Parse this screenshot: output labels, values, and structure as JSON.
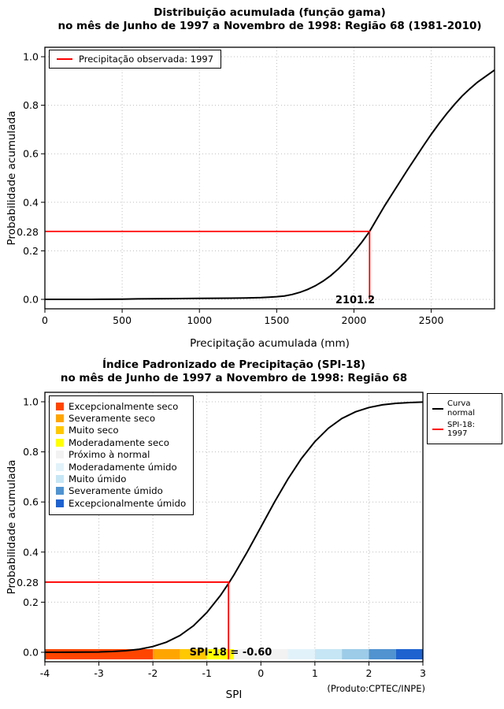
{
  "page": {
    "background": "#ffffff"
  },
  "chart_data": [
    {
      "type": "line",
      "id": "gamma-cdf",
      "title_line1": "Distribuição acumulada (função gama)",
      "title_line2": "no mês de Junho de 1997 a Novembro de 1998: Região 68 (1981-2010)",
      "xlabel": "Precipitação acumulada (mm)",
      "ylabel": "Probabilidade acumulada",
      "xlim": [
        0,
        2910
      ],
      "ylim": [
        0,
        1
      ],
      "xticks": [
        0,
        500,
        1000,
        1500,
        2000,
        2500
      ],
      "xtick_labels": [
        "0",
        "500",
        "1000",
        "1500",
        "2000",
        "2500"
      ],
      "yticks": [
        0,
        0.2,
        0.4,
        0.6,
        0.8,
        1.0
      ],
      "ytick_labels": [
        "0.0",
        "0.2",
        "0.4",
        "0.6",
        "0.8",
        "1.0"
      ],
      "grid": "dotted",
      "curve_color": "#000000",
      "legend": {
        "position": "top-left",
        "items": [
          {
            "label": "Precipitação observada: 1997",
            "color": "#ff0000",
            "type": "line"
          }
        ]
      },
      "marker": {
        "x": 2101.2,
        "y": 0.28,
        "x_label": "2101.2",
        "y_label": "0.28",
        "color": "#ff0000"
      },
      "curve": {
        "x": [
          0,
          300,
          500,
          600,
          800,
          1000,
          1200,
          1300,
          1400,
          1450,
          1500,
          1550,
          1600,
          1650,
          1700,
          1750,
          1800,
          1850,
          1900,
          1950,
          2000,
          2050,
          2101.2,
          2150,
          2200,
          2250,
          2300,
          2350,
          2400,
          2450,
          2500,
          2550,
          2600,
          2650,
          2700,
          2750,
          2800,
          2850,
          2910
        ],
        "y": [
          0,
          0,
          0.001,
          0.002,
          0.003,
          0.004,
          0.005,
          0.006,
          0.007,
          0.009,
          0.011,
          0.014,
          0.02,
          0.029,
          0.041,
          0.056,
          0.075,
          0.098,
          0.126,
          0.158,
          0.195,
          0.235,
          0.28,
          0.333,
          0.387,
          0.437,
          0.487,
          0.537,
          0.585,
          0.633,
          0.68,
          0.724,
          0.765,
          0.803,
          0.838,
          0.868,
          0.895,
          0.918,
          0.945
        ]
      }
    },
    {
      "type": "line",
      "id": "spi-cdf",
      "title_line1": "Índice Padronizado de Precipitação (SPI-18)",
      "title_line2": "no mês de Junho de 1997 a Novembro de 1998: Região 68",
      "xlabel": "SPI",
      "ylabel": "Probabilidade acumulada",
      "xlim": [
        -4,
        3
      ],
      "ylim": [
        0,
        1
      ],
      "xticks": [
        -4,
        -3,
        -2,
        -1,
        0,
        1,
        2,
        3
      ],
      "xtick_labels": [
        "-4",
        "-3",
        "-2",
        "-1",
        "0",
        "1",
        "2",
        "3"
      ],
      "yticks": [
        0,
        0.2,
        0.4,
        0.6,
        0.8,
        1.0
      ],
      "ytick_labels": [
        "0.0",
        "0.2",
        "0.4",
        "0.6",
        "0.8",
        "1.0"
      ],
      "grid": "dotted",
      "curve_color": "#000000",
      "category_legend": {
        "position": "top-left",
        "items": [
          {
            "label": "Excepcionalmente seco",
            "color": "#FF4500"
          },
          {
            "label": "Severamente seco",
            "color": "#FFA500"
          },
          {
            "label": "Muito seco",
            "color": "#FFC800"
          },
          {
            "label": "Moderadamente seco",
            "color": "#FFFF00"
          },
          {
            "label": "Próximo à normal",
            "color": "#F2F2F2"
          },
          {
            "label": "Moderadamente úmido",
            "color": "#E2F2FA"
          },
          {
            "label": "Muito úmido",
            "color": "#C6E6F5"
          },
          {
            "label": "Severamente úmido",
            "color": "#5093D0"
          },
          {
            "label": "Excepcionalmente úmido",
            "color": "#1E62D0"
          }
        ]
      },
      "line_legend": {
        "position": "top-right",
        "items": [
          {
            "label": "Curva normal",
            "label_line1": "Curva",
            "label_line2": "normal",
            "color": "#000000"
          },
          {
            "label": "SPI-18: 1997",
            "color": "#ff0000"
          }
        ]
      },
      "marker": {
        "x": -0.6,
        "y": 0.28,
        "y_label": "0.28",
        "annotation": "SPI-18 = -0.60",
        "color": "#ff0000"
      },
      "colorbar": [
        {
          "from": -4,
          "to": -2,
          "color": "#FF4500"
        },
        {
          "from": -2,
          "to": -1.5,
          "color": "#FFA500"
        },
        {
          "from": -1.5,
          "to": -1,
          "color": "#FFC800"
        },
        {
          "from": -1,
          "to": -0.5,
          "color": "#FFFF00"
        },
        {
          "from": -0.5,
          "to": 0.5,
          "color": "#F2F2F2"
        },
        {
          "from": 0.5,
          "to": 1,
          "color": "#E2F2FA"
        },
        {
          "from": 1,
          "to": 1.5,
          "color": "#C6E6F5"
        },
        {
          "from": 1.5,
          "to": 2,
          "color": "#9CCCE8"
        },
        {
          "from": 2,
          "to": 2.5,
          "color": "#5093D0"
        },
        {
          "from": 2.5,
          "to": 3,
          "color": "#1E62D0"
        }
      ],
      "credit": "(Produto:CPTEC/INPE)",
      "curve": {
        "x": [
          -4,
          -3.75,
          -3.5,
          -3.25,
          -3,
          -2.75,
          -2.5,
          -2.25,
          -2,
          -1.75,
          -1.5,
          -1.25,
          -1,
          -0.75,
          -0.6,
          -0.5,
          -0.25,
          0,
          0.25,
          0.5,
          0.75,
          1,
          1.25,
          1.5,
          1.75,
          2,
          2.25,
          2.5,
          2.75,
          3
        ],
        "y": [
          0.0,
          0.0001,
          0.0002,
          0.0006,
          0.0013,
          0.003,
          0.0062,
          0.0122,
          0.0228,
          0.0401,
          0.0668,
          0.1056,
          0.1587,
          0.2266,
          0.2743,
          0.3085,
          0.4013,
          0.5,
          0.5987,
          0.6915,
          0.7734,
          0.8413,
          0.8944,
          0.9332,
          0.9599,
          0.9772,
          0.9878,
          0.9938,
          0.997,
          0.9987
        ]
      }
    }
  ]
}
